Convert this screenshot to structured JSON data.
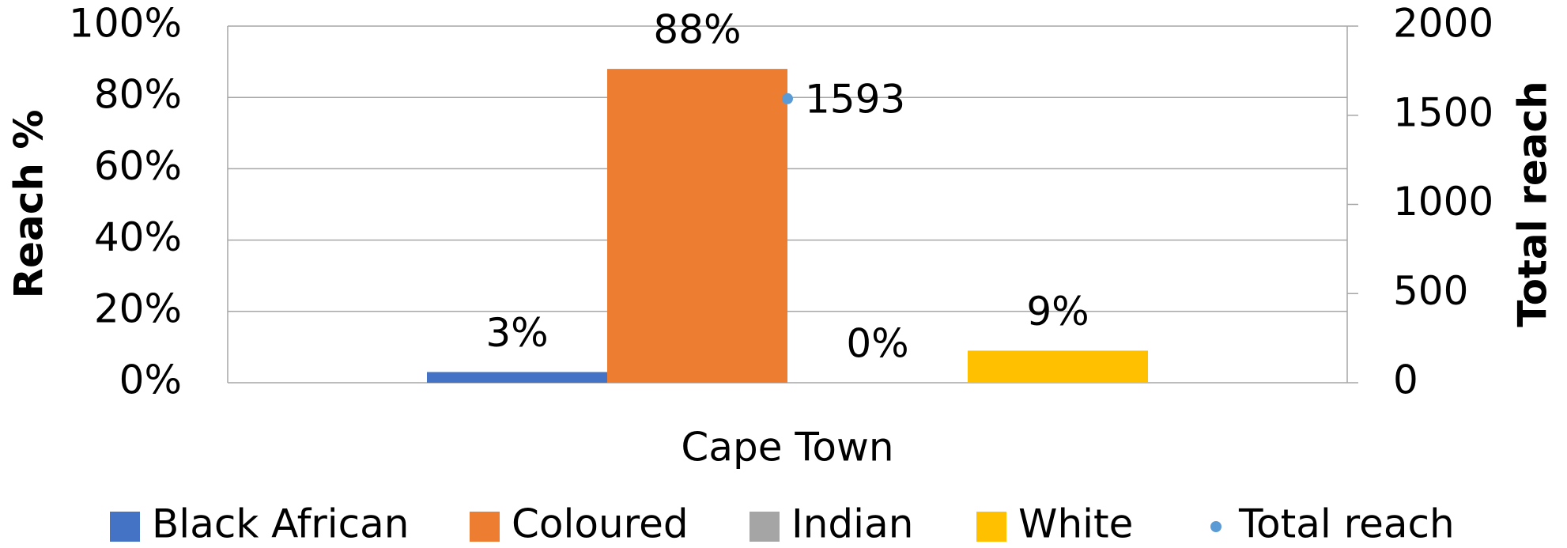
{
  "chart_data": {
    "type": "bar",
    "categories": [
      "Cape Town"
    ],
    "series": [
      {
        "name": "Black African",
        "color": "#4472c4",
        "values": [
          3
        ],
        "value_labels": [
          "3%"
        ]
      },
      {
        "name": "Coloured",
        "color": "#ed7d31",
        "values": [
          88
        ],
        "value_labels": [
          "88%"
        ]
      },
      {
        "name": "Indian",
        "color": "#a5a5a5",
        "values": [
          0
        ],
        "value_labels": [
          "0%"
        ]
      },
      {
        "name": "White",
        "color": "#ffc000",
        "values": [
          9
        ],
        "value_labels": [
          "9%"
        ]
      },
      {
        "name": "Total reach",
        "color": "#5b9bd5",
        "values": [
          1593
        ],
        "axis": "y2",
        "type": "scatter"
      }
    ],
    "ylabel": "Reach %",
    "y2label": "Total reach",
    "ylim": [
      0,
      100
    ],
    "yticks": [
      {
        "value": 0,
        "label": "0%"
      },
      {
        "value": 20,
        "label": "20%"
      },
      {
        "value": 40,
        "label": "40%"
      },
      {
        "value": 60,
        "label": "60%"
      },
      {
        "value": 80,
        "label": "80%"
      },
      {
        "value": 100,
        "label": "100%"
      }
    ],
    "y2lim": [
      0,
      2000
    ],
    "y2ticks": [
      0,
      500,
      1000,
      1500,
      2000
    ],
    "grid": true,
    "legend": "bottom"
  }
}
